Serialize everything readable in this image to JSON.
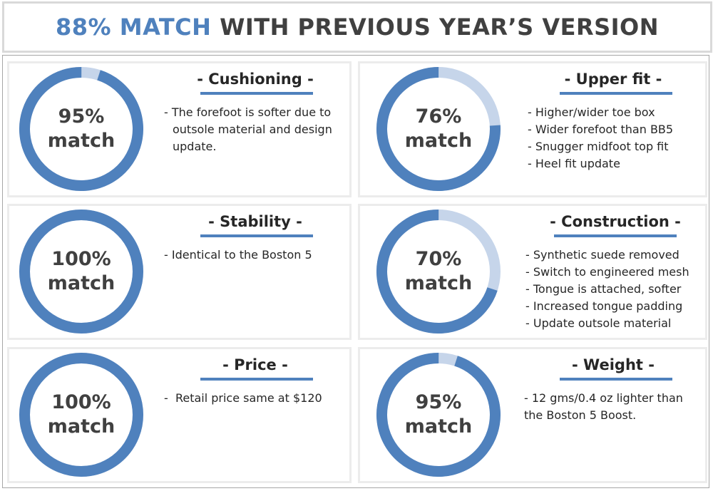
{
  "header": {
    "accent": "88% MATCH",
    "rest": "WITH PREVIOUS YEAR’S VERSION"
  },
  "colors": {
    "ring_filled": "#4f81bd",
    "ring_remaining": "#c6d5ea",
    "text": "#404040",
    "card_border": "#ececec"
  },
  "chart_data": [
    {
      "type": "pie",
      "variant": "donut",
      "title": "- Cushioning -",
      "value": 95,
      "unit": "%",
      "label_top": "95%",
      "label_bottom": "match",
      "lines": [
        "- The forefoot is softer due to outsole material and design update."
      ]
    },
    {
      "type": "pie",
      "variant": "donut",
      "title": "- Upper fit -",
      "value": 76,
      "unit": "%",
      "label_top": "76%",
      "label_bottom": "match",
      "lines": [
        "- Higher/wider toe box",
        "- Wider forefoot than BB5",
        "- Snugger midfoot top fit",
        "- Heel fit update"
      ]
    },
    {
      "type": "pie",
      "variant": "donut",
      "title": "- Stability -",
      "value": 100,
      "unit": "%",
      "label_top": "100%",
      "label_bottom": "match",
      "lines": [
        "- Identical to the Boston 5"
      ]
    },
    {
      "type": "pie",
      "variant": "donut",
      "title": "- Construction -",
      "value": 70,
      "unit": "%",
      "label_top": "70%",
      "label_bottom": "match",
      "lines": [
        "- Synthetic suede removed",
        "- Switch to engineered mesh",
        "- Tongue is attached, softer",
        "- Increased tongue padding",
        "- Update outsole material"
      ]
    },
    {
      "type": "pie",
      "variant": "donut",
      "title": "- Price -",
      "value": 100,
      "unit": "%",
      "label_top": "100%",
      "label_bottom": "match",
      "lines": [
        "-  Retail price same at $120"
      ]
    },
    {
      "type": "pie",
      "variant": "donut",
      "title": "- Weight -",
      "value": 95,
      "unit": "%",
      "label_top": "95%",
      "label_bottom": "match",
      "lines": [
        "- 12 gms/0.4 oz lighter than the Boston 5 Boost."
      ]
    }
  ]
}
